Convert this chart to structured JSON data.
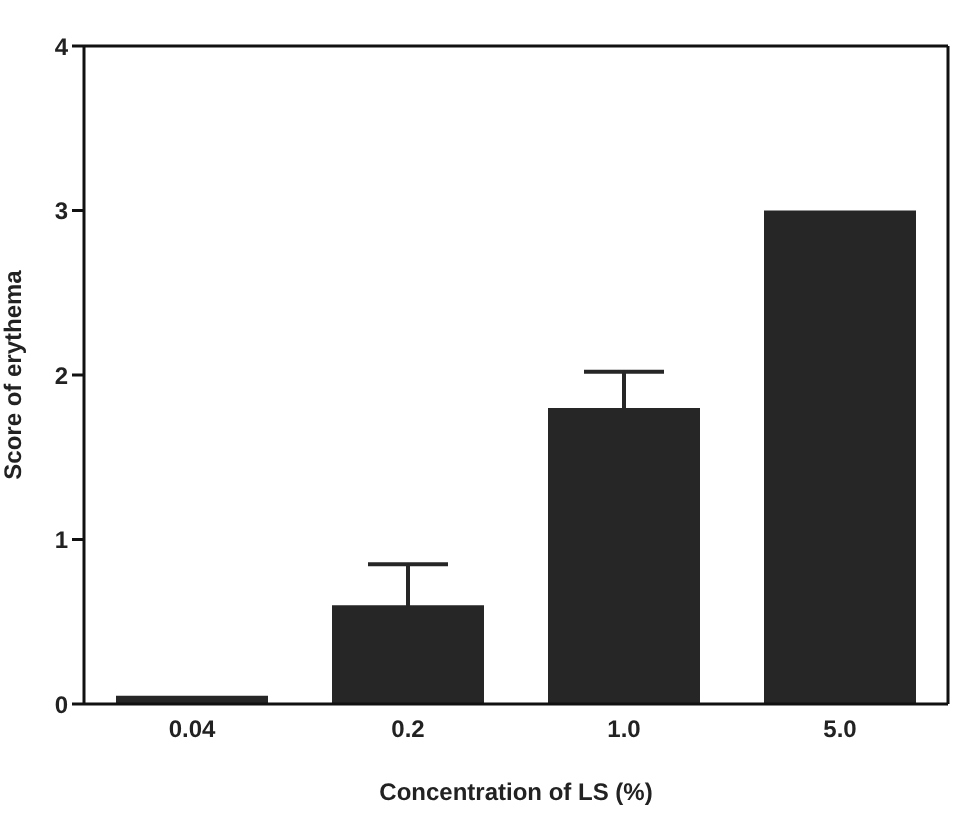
{
  "chart_data": {
    "type": "bar",
    "xlabel": "Concentration of LS (%)",
    "ylabel": "Score of erythema",
    "categories": [
      "0.04",
      "0.2",
      "1.0",
      "5.0"
    ],
    "values": [
      0.05,
      0.6,
      1.8,
      3.0
    ],
    "errors": [
      null,
      0.25,
      0.22,
      null
    ],
    "color": "#262626",
    "ylim": [
      0,
      4
    ],
    "yticks": [
      0,
      1,
      2,
      3,
      4
    ],
    "grid": false,
    "legend": false
  }
}
